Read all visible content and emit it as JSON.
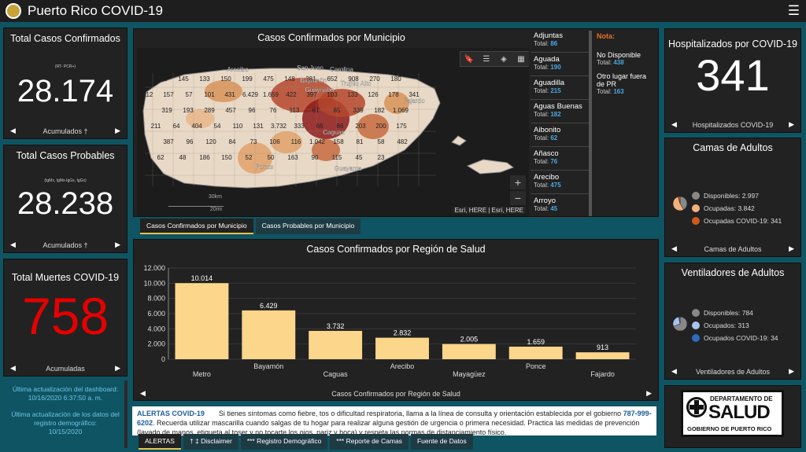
{
  "app": {
    "title": "Puerto Rico COVID-19"
  },
  "kpi_confirmed": {
    "title": "Total Casos Confirmados",
    "sub": "(RT- PCR+)",
    "value": "28.174",
    "footer": "Acumulados †"
  },
  "kpi_probable": {
    "title": "Total Casos Probables",
    "sub": "(IgMx, IgMx-IgGx, IgGx)",
    "value": "28.238",
    "footer": "Acumulados †"
  },
  "kpi_deaths": {
    "title": "Total Muertes COVID-19",
    "value": "758",
    "footer": "Acumuladas"
  },
  "updates": {
    "dash_label": "Última actualización del dashboard:",
    "dash_date": "10/16/2020 6:37:50 a. m.",
    "demo_label": "Última actualización de los datos del registro demográfico:",
    "demo_date": "10/15/2020"
  },
  "map": {
    "title": "Casos Confirmados por Municipio",
    "scale_km": "30km",
    "scale_mi": "20mi",
    "attribution": "Esri, HERE | Esri, HERE",
    "cities": [
      "Arecibo",
      "San Juan",
      "Carolina",
      "Bayamón",
      "Guaynabo",
      "Trujillo Alto",
      "Fajardo",
      "Ponce",
      "Guayama",
      "Caguas"
    ],
    "values": [
      "215",
      "145",
      "133",
      "150",
      "199",
      "475",
      "148",
      "281",
      "652",
      "908",
      "270",
      "180",
      "112",
      "157",
      "57",
      "101",
      "431",
      "6.429",
      "1.659",
      "422",
      "397",
      "103",
      "133",
      "126",
      "178",
      "341",
      "319",
      "193",
      "289",
      "457",
      "96",
      "76",
      "113",
      "61",
      "85",
      "339",
      "182",
      "1.069",
      "211",
      "64",
      "404",
      "54",
      "110",
      "131",
      "3.732",
      "333",
      "66",
      "86",
      "203",
      "200",
      "175",
      "387",
      "96",
      "120",
      "84",
      "73",
      "106",
      "116",
      "1.042",
      "158",
      "81",
      "58",
      "482",
      "62",
      "48",
      "186",
      "150",
      "52",
      "50",
      "163",
      "90",
      "115",
      "45",
      "23"
    ]
  },
  "municipios": [
    {
      "name": "Adjuntas",
      "total_label": "Total:",
      "total": "86"
    },
    {
      "name": "Aguada",
      "total_label": "Total:",
      "total": "190"
    },
    {
      "name": "Aguadilla",
      "total_label": "Total:",
      "total": "215"
    },
    {
      "name": "Aguas Buenas",
      "total_label": "Total:",
      "total": "182"
    },
    {
      "name": "Aibonito",
      "total_label": "Total:",
      "total": "62"
    },
    {
      "name": "Añasco",
      "total_label": "Total:",
      "total": "76"
    },
    {
      "name": "Arecibo",
      "total_label": "Total:",
      "total": "475"
    },
    {
      "name": "Arroyo",
      "total_label": "Total:",
      "total": "45"
    }
  ],
  "nota": {
    "header": "Nota:",
    "items": [
      {
        "name": "No Disponible",
        "total_label": "Total:",
        "total": "438"
      },
      {
        "name": "Otro lugar fuera de PR",
        "total_label": "Total:",
        "total": "163"
      }
    ]
  },
  "map_tabs": [
    "Casos Confirmados por Municipio",
    "Casos Probables por Municipio"
  ],
  "chart_title": "Casos Confirmados por Región de Salud",
  "chart_footer": "Casos Confirmados por Región de Salud",
  "chart_data": {
    "type": "bar",
    "title": "Casos Confirmados por Región de Salud",
    "categories": [
      "Metro",
      "Bayamón",
      "Caguas",
      "Arecibo",
      "Mayagüez",
      "Ponce",
      "Fajardo"
    ],
    "values": [
      10014,
      6429,
      3732,
      2832,
      2005,
      1659,
      913
    ],
    "value_labels": [
      "10.014",
      "6.429",
      "3.732",
      "2.832",
      "2.005",
      "1.659",
      "913"
    ],
    "yticks": [
      "0",
      "2.000",
      "4.000",
      "6.000",
      "8.000",
      "10.000",
      "12.000"
    ],
    "ylim": [
      0,
      12000
    ],
    "bar_color": "#fcd68a"
  },
  "hosp": {
    "title": "Hospitalizados por COVID-19",
    "value": "341",
    "footer": "Hospitalizados COVID-19"
  },
  "beds": {
    "title": "Camas de Adultos",
    "footer": "Camas de Adultos",
    "legend": [
      {
        "label": "Disponibles:",
        "value": "2.997",
        "color": "#888888"
      },
      {
        "label": "Ocupadas:",
        "value": "3.842",
        "color": "#f4b07c"
      },
      {
        "label": "Ocupadas COVID-19:",
        "value": "341",
        "color": "#d2591c"
      }
    ]
  },
  "vents": {
    "title": "Ventiladores de Adultos",
    "footer": "Ventiladores de Adultos",
    "legend": [
      {
        "label": "Disponibles:",
        "value": "784",
        "color": "#888888"
      },
      {
        "label": "Ocupados:",
        "value": "313",
        "color": "#a9c4ef"
      },
      {
        "label": "Ocupados COVID-19:",
        "value": "34",
        "color": "#2d6bc0"
      }
    ]
  },
  "salud_logo": {
    "line1": "DEPARTAMENTO DE",
    "line2": "SALUD",
    "line3": "GOBIERNO DE PUERTO RICO"
  },
  "alerts": {
    "label": "ALERTAS COVID-19",
    "text1": "Si tienes síntomas como fiebre, tos o dificultad respiratoria, llama a la línea de consulta y orientación establecida por el gobierno",
    "phone": "787-999-6202",
    "text2": ". Recuerda utilizar mascarilla cuando salgas de tu hogar para realizar alguna gestión de urgencia o primera necesidad. Practica las medidas de prevención (lavado de manos, etiqueta al toser y no tocarte los ojos, nariz y boca) y respeta las normas de distanciamiento físico."
  },
  "bottom_tabs": [
    "ALERTAS",
    "† ‡ Disclaimer",
    "*** Registro Demográfico",
    "*** Reporte de Camas",
    "Fuente de Datos"
  ]
}
